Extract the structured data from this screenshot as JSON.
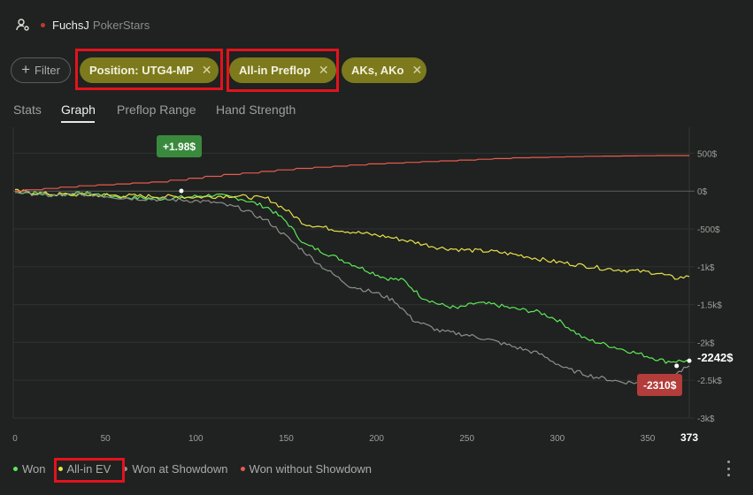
{
  "header": {
    "player": "FuchsJ",
    "site": "PokerStars",
    "status_color": "#c0392b"
  },
  "filters": {
    "add_label": "Filter",
    "chips": [
      {
        "label": "Position: UTG4-MP",
        "highlighted": true
      },
      {
        "label": "All-in Preflop",
        "highlighted": true
      },
      {
        "label": "AKs, AKo",
        "highlighted": false
      }
    ],
    "chip_color": "#7c7a1c"
  },
  "tabs": [
    {
      "label": "Stats",
      "active": false
    },
    {
      "label": "Graph",
      "active": true
    },
    {
      "label": "Preflop Range",
      "active": false
    },
    {
      "label": "Hand Strength",
      "active": false
    }
  ],
  "chart_data": {
    "type": "line",
    "xlim": [
      0,
      373
    ],
    "ylim": [
      -3000,
      750
    ],
    "x_ticks": [
      "0",
      "50",
      "100",
      "150",
      "200",
      "250",
      "300",
      "350",
      "373"
    ],
    "y_ticks": [
      {
        "value": 500,
        "label": "500$"
      },
      {
        "value": 0,
        "label": "0$"
      },
      {
        "value": -500,
        "label": "-500$"
      },
      {
        "value": -1000,
        "label": "-1k$"
      },
      {
        "value": -1500,
        "label": "-1.5k$"
      },
      {
        "value": -2000,
        "label": "-2k$"
      },
      {
        "value": -2500,
        "label": "-2.5k$"
      },
      {
        "value": -3000,
        "label": "-3k$"
      }
    ],
    "grid": true,
    "series": [
      {
        "name": "Won",
        "color": "#5ee85a",
        "x": [
          0,
          20,
          40,
          60,
          80,
          95,
          110,
          125,
          140,
          150,
          160,
          175,
          185,
          195,
          205,
          215,
          225,
          235,
          245,
          255,
          265,
          275,
          290,
          300,
          315,
          330,
          345,
          360,
          373
        ],
        "y": [
          0,
          -50,
          -30,
          -80,
          -100,
          -80,
          -50,
          -100,
          -220,
          -400,
          -700,
          -850,
          -950,
          -1050,
          -1150,
          -1180,
          -1400,
          -1500,
          -1550,
          -1480,
          -1500,
          -1550,
          -1600,
          -1700,
          -1950,
          -2050,
          -2150,
          -2250,
          -2242
        ]
      },
      {
        "name": "All-in EV",
        "color": "#e8e04a",
        "x": [
          0,
          20,
          40,
          60,
          80,
          100,
          120,
          140,
          150,
          160,
          175,
          190,
          205,
          220,
          235,
          250,
          265,
          280,
          295,
          310,
          325,
          340,
          355,
          365,
          373
        ],
        "y": [
          0,
          -40,
          -50,
          -60,
          -70,
          -80,
          -60,
          -100,
          -250,
          -430,
          -500,
          -550,
          -600,
          -670,
          -750,
          -780,
          -800,
          -850,
          -920,
          -970,
          -1020,
          -1050,
          -1080,
          -1150,
          -1130
        ]
      },
      {
        "name": "Won at Showdown",
        "color": "#8d8f8b",
        "x": [
          0,
          20,
          40,
          60,
          80,
          95,
          110,
          125,
          140,
          150,
          160,
          170,
          185,
          200,
          210,
          220,
          235,
          250,
          260,
          275,
          290,
          305,
          320,
          335,
          350,
          360,
          373
        ],
        "y": [
          -10,
          -60,
          -40,
          -90,
          -110,
          -120,
          -150,
          -230,
          -400,
          -600,
          -800,
          -1000,
          -1250,
          -1350,
          -1450,
          -1700,
          -1850,
          -1900,
          -1950,
          -2050,
          -2150,
          -2350,
          -2450,
          -2520,
          -2540,
          -2500,
          -2310
        ]
      },
      {
        "name": "Won without Showdown",
        "color": "#ea5a4f",
        "x": [
          0,
          40,
          80,
          120,
          160,
          200,
          240,
          280,
          320,
          360,
          373
        ],
        "y": [
          0,
          70,
          120,
          220,
          300,
          360,
          400,
          440,
          460,
          470,
          470
        ]
      }
    ],
    "callouts": [
      {
        "label": "+1.98$",
        "kind": "positive",
        "x": 92,
        "y": 2
      },
      {
        "label": "-2310$",
        "kind": "negative",
        "x": 366,
        "y": -2310
      }
    ],
    "end_value_label": "-2242$"
  },
  "legend": [
    {
      "label": "Won",
      "color": "#5ee85a",
      "highlighted": false
    },
    {
      "label": "All-in EV",
      "color": "#e8e04a",
      "highlighted": true
    },
    {
      "label": "Won at Showdown",
      "color": "#8d8f8b",
      "highlighted": false
    },
    {
      "label": "Won without Showdown",
      "color": "#ea5a4f",
      "highlighted": false
    }
  ]
}
